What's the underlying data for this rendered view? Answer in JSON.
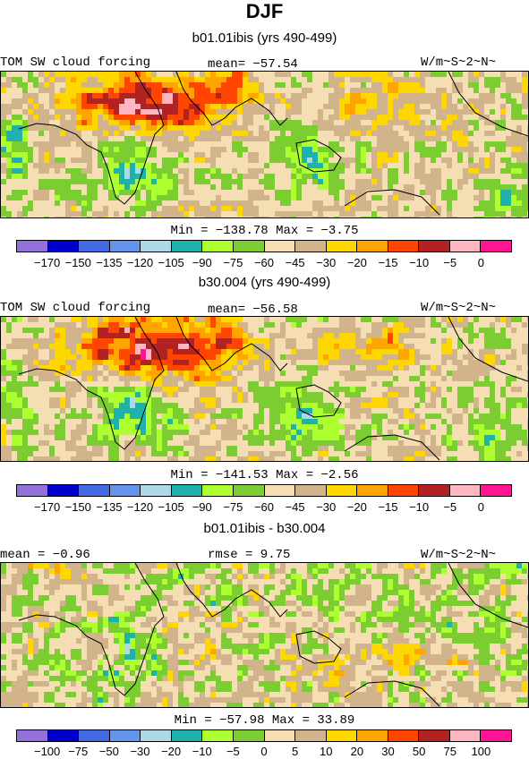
{
  "title": "DJF",
  "colors": [
    "#9370DB",
    "#0000CD",
    "#4169E1",
    "#6495ED",
    "#ADD8E6",
    "#20B2AA",
    "#ADFF2F",
    "#7CCD32",
    "#F5DEB3",
    "#D2B48C",
    "#FFD700",
    "#FFA500",
    "#FF4500",
    "#B22222",
    "#FFB6C1",
    "#FF1493"
  ],
  "panels": [
    {
      "subtitle": "b01.01ibis (yrs 490-499)",
      "left_label": "TOM SW cloud forcing",
      "mid_label": "mean= −57.54",
      "right_label": "W/m~S~2~N~",
      "minmax": "Min = −138.78 Max =  −3.75",
      "ticks": [
        "−170",
        "−150",
        "−135",
        "−120",
        "−105",
        "−90",
        "−75",
        "−60",
        "−45",
        "−30",
        "−20",
        "−15",
        "−10",
        "−5",
        "0"
      ]
    },
    {
      "subtitle": "b30.004 (yrs 490-499)",
      "left_label": "TOM SW cloud forcing",
      "mid_label": "mean= −56.58",
      "right_label": "W/m~S~2~N~",
      "minmax": "Min = −141.53 Max =  −2.56",
      "ticks": [
        "−170",
        "−150",
        "−135",
        "−120",
        "−105",
        "−90",
        "−75",
        "−60",
        "−45",
        "−30",
        "−20",
        "−15",
        "−10",
        "−5",
        "0"
      ]
    },
    {
      "subtitle": "b01.01ibis - b30.004",
      "left_label": "mean =  −0.96",
      "mid_label": "rmse =   9.75",
      "right_label": "W/m~S~2~N~",
      "minmax": "Min = −57.98 Max =  33.89",
      "ticks": [
        "−100",
        "−75",
        "−50",
        "−30",
        "−20",
        "−10",
        "−5",
        "0",
        "5",
        "10",
        "20",
        "30",
        "50",
        "75",
        "100"
      ]
    }
  ]
}
